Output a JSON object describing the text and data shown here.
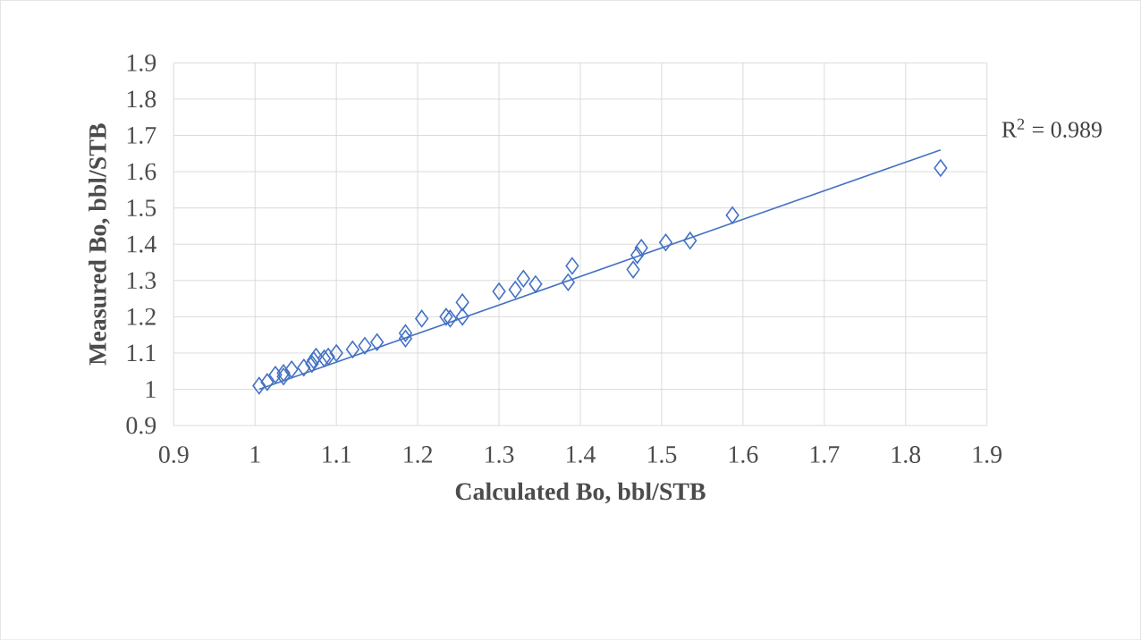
{
  "chart_data": {
    "type": "scatter",
    "xlabel": "Calculated Bo, bbl/STB",
    "ylabel": "Measured Bo, bbl/STB",
    "xlim": [
      0.9,
      1.9
    ],
    "xticks": [
      0.9,
      1,
      1.1,
      1.2,
      1.3,
      1.4,
      1.5,
      1.6,
      1.7,
      1.8,
      1.9
    ],
    "ylim": [
      0.9,
      1.9
    ],
    "yticks": [
      0.9,
      1,
      1.1,
      1.2,
      1.3,
      1.4,
      1.5,
      1.6,
      1.7,
      1.8,
      1.9
    ],
    "grid": true,
    "annotations": [
      "R$^{2}$ = 0.989"
    ],
    "series": [
      {
        "marker": "diamond",
        "color": "#4472c4",
        "x": [
          1.005,
          1.015,
          1.025,
          1.035,
          1.045,
          1.035,
          1.06,
          1.07,
          1.075,
          1.072,
          1.085,
          1.09,
          1.1,
          1.12,
          1.135,
          1.15,
          1.185,
          1.185,
          1.205,
          1.235,
          1.24,
          1.255,
          1.255,
          1.3,
          1.32,
          1.33,
          1.345,
          1.385,
          1.39,
          1.465,
          1.47,
          1.475,
          1.505,
          1.535,
          1.587,
          1.843
        ],
        "values": [
          1.01,
          1.02,
          1.04,
          1.045,
          1.055,
          1.035,
          1.06,
          1.07,
          1.09,
          1.08,
          1.085,
          1.09,
          1.1,
          1.11,
          1.12,
          1.13,
          1.14,
          1.155,
          1.195,
          1.2,
          1.195,
          1.2,
          1.24,
          1.27,
          1.275,
          1.305,
          1.29,
          1.295,
          1.34,
          1.33,
          1.37,
          1.39,
          1.405,
          1.41,
          1.48,
          1.61
        ]
      },
      {
        "type": "line",
        "marker": "none",
        "color": "#4472c4",
        "line_style": "solid",
        "x": [
          1.005,
          1.843
        ],
        "values": [
          1.0,
          1.66
        ]
      }
    ]
  }
}
